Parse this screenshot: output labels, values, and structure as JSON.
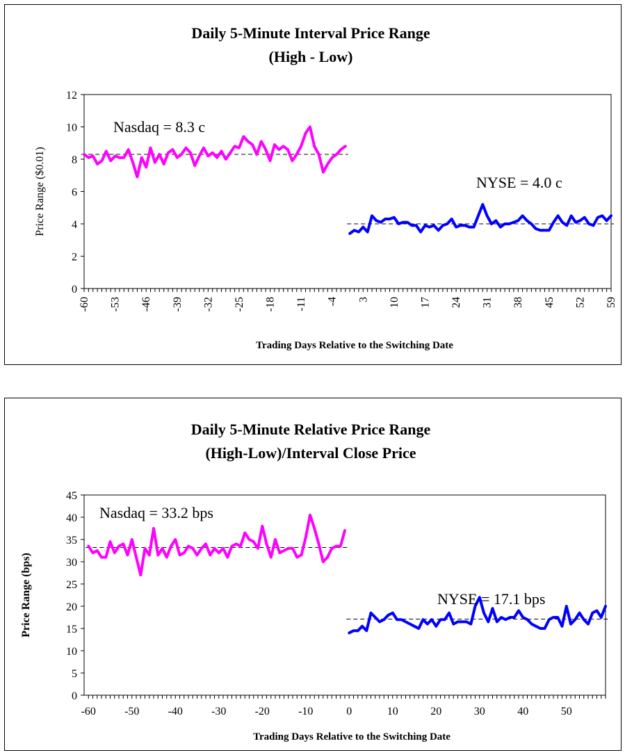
{
  "chart_data": [
    {
      "type": "line",
      "title": "Daily 5-Minute Interval Price Range",
      "subtitle": "(High - Low)",
      "xlabel": "Trading Days Relative to the Switching Date",
      "ylabel": "Price Range ($0.01)",
      "ylim": [
        0,
        12
      ],
      "yticks": [
        0,
        2,
        4,
        6,
        8,
        10,
        12
      ],
      "xticks": [
        -60,
        -53,
        -46,
        -39,
        -32,
        -25,
        -18,
        -11,
        -4,
        3,
        10,
        17,
        24,
        31,
        38,
        45,
        52,
        59
      ],
      "grid": false,
      "series": [
        {
          "name": "Nasdaq",
          "color": "#ff00ff",
          "x": [
            -60,
            -59,
            -58,
            -57,
            -56,
            -55,
            -54,
            -53,
            -52,
            -51,
            -50,
            -49,
            -48,
            -47,
            -46,
            -45,
            -44,
            -43,
            -42,
            -41,
            -40,
            -39,
            -38,
            -37,
            -36,
            -35,
            -34,
            -33,
            -32,
            -31,
            -30,
            -29,
            -28,
            -27,
            -26,
            -25,
            -24,
            -23,
            -22,
            -21,
            -20,
            -19,
            -18,
            -17,
            -16,
            -15,
            -14,
            -13,
            -12,
            -11,
            -10,
            -9,
            -8,
            -7,
            -6,
            -5,
            -4,
            -3,
            -2,
            -1
          ],
          "values": [
            8.3,
            8.1,
            8.2,
            7.7,
            7.9,
            8.5,
            7.9,
            8.2,
            8.1,
            8.1,
            8.6,
            7.8,
            6.9,
            8.1,
            7.5,
            8.7,
            7.8,
            8.3,
            7.7,
            8.4,
            8.6,
            8.1,
            8.3,
            8.7,
            8.4,
            7.6,
            8.2,
            8.7,
            8.2,
            8.4,
            8.1,
            8.5,
            8.0,
            8.4,
            8.8,
            8.7,
            9.4,
            9.1,
            8.9,
            8.3,
            9.1,
            8.6,
            7.9,
            8.9,
            8.6,
            8.8,
            8.6,
            7.9,
            8.3,
            8.8,
            9.6,
            10.0,
            8.8,
            8.3,
            7.2,
            7.7,
            8.1,
            8.3,
            8.6,
            8.8
          ]
        },
        {
          "name": "NYSE",
          "color": "#0000ff",
          "x": [
            0,
            1,
            2,
            3,
            4,
            5,
            6,
            7,
            8,
            9,
            10,
            11,
            12,
            13,
            14,
            15,
            16,
            17,
            18,
            19,
            20,
            21,
            22,
            23,
            24,
            25,
            26,
            27,
            28,
            29,
            30,
            31,
            32,
            33,
            34,
            35,
            36,
            37,
            38,
            39,
            40,
            41,
            42,
            43,
            44,
            45,
            46,
            47,
            48,
            49,
            50,
            51,
            52,
            53,
            54,
            55,
            56,
            57,
            58,
            59
          ],
          "values": [
            3.4,
            3.6,
            3.5,
            3.8,
            3.5,
            4.5,
            4.2,
            4.1,
            4.3,
            4.3,
            4.4,
            4.0,
            4.1,
            4.1,
            3.9,
            3.9,
            3.5,
            3.9,
            3.8,
            3.9,
            3.6,
            3.9,
            4.0,
            4.3,
            3.8,
            3.9,
            3.9,
            3.8,
            3.8,
            4.5,
            5.2,
            4.5,
            4.0,
            4.2,
            3.8,
            4.0,
            4.0,
            4.1,
            4.2,
            4.5,
            4.2,
            4.0,
            3.7,
            3.6,
            3.6,
            3.6,
            4.1,
            4.5,
            4.1,
            3.9,
            4.5,
            4.1,
            4.2,
            4.4,
            4.0,
            3.9,
            4.4,
            4.5,
            4.2,
            4.5
          ]
        }
      ],
      "reference_lines": [
        {
          "series": "Nasdaq",
          "value": 8.3
        },
        {
          "series": "NYSE",
          "value": 4.0
        }
      ],
      "annotations": [
        "Nasdaq = 8.3 c",
        "NYSE = 4.0 c"
      ]
    },
    {
      "type": "line",
      "title": "Daily 5-Minute Relative Price Range",
      "subtitle": "(High-Low)/Interval Close Price",
      "xlabel": "Trading Days Relative to the Switching Date",
      "ylabel": "Price Range (bps)",
      "ylim": [
        0,
        45
      ],
      "yticks": [
        0,
        5,
        10,
        15,
        20,
        25,
        30,
        35,
        40,
        45
      ],
      "xlim": [
        -60,
        59
      ],
      "xticks": [
        -60,
        -50,
        -40,
        -30,
        -20,
        -10,
        0,
        10,
        20,
        30,
        40,
        50
      ],
      "grid": false,
      "series": [
        {
          "name": "Nasdaq",
          "color": "#ff00ff",
          "x": [
            -60,
            -59,
            -58,
            -57,
            -56,
            -55,
            -54,
            -53,
            -52,
            -51,
            -50,
            -49,
            -48,
            -47,
            -46,
            -45,
            -44,
            -43,
            -42,
            -41,
            -40,
            -39,
            -38,
            -37,
            -36,
            -35,
            -34,
            -33,
            -32,
            -31,
            -30,
            -29,
            -28,
            -27,
            -26,
            -25,
            -24,
            -23,
            -22,
            -21,
            -20,
            -19,
            -18,
            -17,
            -16,
            -15,
            -14,
            -13,
            -12,
            -11,
            -10,
            -9,
            -8,
            -7,
            -6,
            -5,
            -4,
            -3,
            -2,
            -1
          ],
          "values": [
            33.5,
            32.0,
            32.5,
            31.0,
            31.0,
            34.5,
            32.0,
            33.5,
            34.0,
            31.5,
            35.0,
            31.0,
            27.0,
            33.0,
            31.5,
            37.5,
            31.5,
            33.0,
            31.0,
            33.5,
            35.0,
            31.5,
            32.0,
            33.5,
            33.0,
            31.5,
            33.0,
            34.0,
            31.5,
            33.0,
            32.0,
            33.0,
            31.0,
            33.5,
            34.0,
            33.5,
            36.5,
            35.0,
            34.5,
            33.0,
            38.0,
            34.0,
            31.0,
            35.0,
            32.0,
            32.5,
            33.0,
            33.0,
            31.0,
            31.5,
            35.5,
            40.5,
            37.5,
            34.0,
            30.0,
            31.0,
            33.0,
            33.5,
            33.5,
            37.0
          ]
        },
        {
          "name": "NYSE",
          "color": "#0000ff",
          "x": [
            0,
            1,
            2,
            3,
            4,
            5,
            6,
            7,
            8,
            9,
            10,
            11,
            12,
            13,
            14,
            15,
            16,
            17,
            18,
            19,
            20,
            21,
            22,
            23,
            24,
            25,
            26,
            27,
            28,
            29,
            30,
            31,
            32,
            33,
            34,
            35,
            36,
            37,
            38,
            39,
            40,
            41,
            42,
            43,
            44,
            45,
            46,
            47,
            48,
            49,
            50,
            51,
            52,
            53,
            54,
            55,
            56,
            57,
            58,
            59
          ],
          "values": [
            14.0,
            14.5,
            14.5,
            15.5,
            14.5,
            18.5,
            17.5,
            16.5,
            17.0,
            18.0,
            18.5,
            17.0,
            17.0,
            16.5,
            16.0,
            15.5,
            15.0,
            17.0,
            16.0,
            17.0,
            15.5,
            17.0,
            17.0,
            18.5,
            16.0,
            16.5,
            16.5,
            16.5,
            16.0,
            20.0,
            22.0,
            18.5,
            16.5,
            19.5,
            16.5,
            17.5,
            17.0,
            17.5,
            17.5,
            19.0,
            17.5,
            17.0,
            16.0,
            15.5,
            15.0,
            15.0,
            17.0,
            17.5,
            17.5,
            15.5,
            20.0,
            16.0,
            17.0,
            18.5,
            17.0,
            16.0,
            18.5,
            19.0,
            17.5,
            20.0
          ]
        }
      ],
      "reference_lines": [
        {
          "series": "Nasdaq",
          "value": 33.2
        },
        {
          "series": "NYSE",
          "value": 17.1
        }
      ],
      "annotations": [
        "Nasdaq = 33.2 bps",
        "NYSE = 17.1 bps"
      ]
    }
  ]
}
